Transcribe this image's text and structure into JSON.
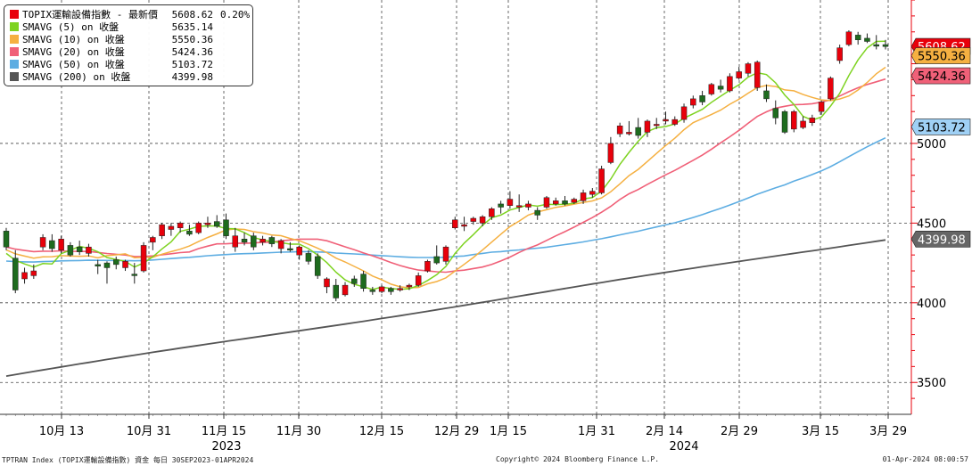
{
  "chart_data": {
    "type": "candlestick",
    "title": "TOPIX運輸設備指數 - 最新價",
    "ylim": [
      3300,
      5900
    ],
    "yticks": [
      "3500",
      "4000",
      "4500",
      "5000"
    ],
    "xticks": [
      "10月 13",
      "10月 31",
      "11月 15",
      "11月 30",
      "12月 15",
      "12月 29",
      "1月 15",
      "1月 31",
      "2月 14",
      "2月 29",
      "3月 15",
      "3月 29"
    ],
    "year_labels": [
      "2023",
      "2024"
    ],
    "legend": [
      {
        "name": "TOPIX運輸設備指數 - 最新價",
        "value": "5608.62",
        "change": "0.20%",
        "color": "#e8000b"
      },
      {
        "name": "SMAVG (5)  on 收盤",
        "value": "5635.14",
        "color": "#7ed321"
      },
      {
        "name": "SMAVG (10)  on 收盤",
        "value": "5550.36",
        "color": "#f5b041"
      },
      {
        "name": "SMAVG (20)  on 收盤",
        "value": "5424.36",
        "color": "#f06078"
      },
      {
        "name": "SMAVG (50)  on 收盤",
        "value": "5103.72",
        "color": "#5dade2"
      },
      {
        "name": "SMAVG (200)  on 收盤",
        "value": "4399.98",
        "color": "#555555"
      }
    ],
    "value_tags": [
      {
        "label": "5608.62",
        "value": 5608.62,
        "bg": "#e8000b",
        "fg": "#ffffff"
      },
      {
        "label": "5550.36",
        "value": 5550.36,
        "bg": "#f5b041",
        "fg": "#000000"
      },
      {
        "label": "5424.36",
        "value": 5424.36,
        "bg": "#f06078",
        "fg": "#000000"
      },
      {
        "label": "5103.72",
        "value": 5103.72,
        "bg": "#9fd0f5",
        "fg": "#000000"
      },
      {
        "label": "4399.98",
        "value": 4399.98,
        "bg": "#666666",
        "fg": "#ffffff"
      }
    ],
    "candles": [
      [
        4450,
        4470,
        4330,
        4350
      ],
      [
        4280,
        4330,
        4060,
        4080
      ],
      [
        4150,
        4220,
        4120,
        4190
      ],
      [
        4170,
        4240,
        4150,
        4200
      ],
      [
        4350,
        4430,
        4330,
        4410
      ],
      [
        4390,
        4430,
        4320,
        4340
      ],
      [
        4330,
        4420,
        4310,
        4400
      ],
      [
        4360,
        4380,
        4290,
        4300
      ],
      [
        4350,
        4390,
        4300,
        4320
      ],
      [
        4310,
        4370,
        4290,
        4350
      ],
      [
        4240,
        4270,
        4180,
        4230
      ],
      [
        4250,
        4260,
        4120,
        4220
      ],
      [
        4270,
        4290,
        4210,
        4240
      ],
      [
        4220,
        4270,
        4200,
        4260
      ],
      [
        4180,
        4250,
        4120,
        4170
      ],
      [
        4200,
        4380,
        4190,
        4360
      ],
      [
        4380,
        4420,
        4330,
        4410
      ],
      [
        4420,
        4500,
        4400,
        4490
      ],
      [
        4460,
        4500,
        4420,
        4480
      ],
      [
        4470,
        4510,
        4440,
        4500
      ],
      [
        4450,
        4490,
        4420,
        4430
      ],
      [
        4440,
        4510,
        4430,
        4500
      ],
      [
        4490,
        4540,
        4470,
        4500
      ],
      [
        4510,
        4550,
        4470,
        4480
      ],
      [
        4520,
        4560,
        4400,
        4420
      ],
      [
        4350,
        4470,
        4320,
        4420
      ],
      [
        4400,
        4440,
        4360,
        4380
      ],
      [
        4420,
        4440,
        4330,
        4350
      ],
      [
        4380,
        4420,
        4360,
        4400
      ],
      [
        4410,
        4420,
        4350,
        4370
      ],
      [
        4340,
        4400,
        4310,
        4390
      ],
      [
        4340,
        4380,
        4320,
        4330
      ],
      [
        4300,
        4360,
        4270,
        4350
      ],
      [
        4310,
        4330,
        4240,
        4260
      ],
      [
        4290,
        4310,
        4150,
        4170
      ],
      [
        4100,
        4160,
        4060,
        4150
      ],
      [
        4110,
        4150,
        4010,
        4030
      ],
      [
        4050,
        4130,
        4040,
        4110
      ],
      [
        4150,
        4170,
        4100,
        4120
      ],
      [
        4180,
        4200,
        4070,
        4090
      ],
      [
        4080,
        4100,
        4050,
        4070
      ],
      [
        4070,
        4110,
        4060,
        4100
      ],
      [
        4090,
        4100,
        4050,
        4070
      ],
      [
        4080,
        4110,
        4070,
        4090
      ],
      [
        4100,
        4120,
        4080,
        4110
      ],
      [
        4110,
        4190,
        4100,
        4170
      ],
      [
        4200,
        4270,
        4190,
        4260
      ],
      [
        4290,
        4360,
        4240,
        4250
      ],
      [
        4260,
        4360,
        4240,
        4350
      ],
      [
        4470,
        4540,
        4460,
        4520
      ],
      [
        4480,
        4540,
        4450,
        4490
      ],
      [
        4510,
        4540,
        4490,
        4530
      ],
      [
        4500,
        4550,
        4480,
        4540
      ],
      [
        4540,
        4600,
        4520,
        4590
      ],
      [
        4620,
        4640,
        4560,
        4600
      ],
      [
        4610,
        4700,
        4590,
        4650
      ],
      [
        4600,
        4680,
        4570,
        4610
      ],
      [
        4600,
        4640,
        4580,
        4620
      ],
      [
        4580,
        4600,
        4520,
        4550
      ],
      [
        4600,
        4670,
        4590,
        4660
      ],
      [
        4620,
        4660,
        4610,
        4640
      ],
      [
        4640,
        4670,
        4610,
        4620
      ],
      [
        4630,
        4660,
        4620,
        4650
      ],
      [
        4640,
        4710,
        4620,
        4690
      ],
      [
        4680,
        4720,
        4660,
        4700
      ],
      [
        4690,
        4860,
        4680,
        4840
      ],
      [
        4880,
        5040,
        4870,
        5000
      ],
      [
        5060,
        5130,
        5040,
        5110
      ],
      [
        5060,
        5140,
        5050,
        5070
      ],
      [
        5100,
        5160,
        5030,
        5050
      ],
      [
        5070,
        5150,
        5040,
        5140
      ],
      [
        5120,
        5160,
        5090,
        5120
      ],
      [
        5140,
        5200,
        5120,
        5150
      ],
      [
        5120,
        5170,
        5110,
        5150
      ],
      [
        5150,
        5250,
        5130,
        5230
      ],
      [
        5240,
        5300,
        5220,
        5280
      ],
      [
        5300,
        5330,
        5240,
        5260
      ],
      [
        5310,
        5380,
        5300,
        5370
      ],
      [
        5360,
        5400,
        5320,
        5340
      ],
      [
        5330,
        5440,
        5320,
        5420
      ],
      [
        5410,
        5480,
        5400,
        5450
      ],
      [
        5440,
        5510,
        5420,
        5500
      ],
      [
        5350,
        5520,
        5330,
        5510
      ],
      [
        5330,
        5370,
        5260,
        5280
      ],
      [
        5220,
        5270,
        5120,
        5160
      ],
      [
        5200,
        5210,
        5060,
        5070
      ],
      [
        5090,
        5210,
        5070,
        5200
      ],
      [
        5100,
        5170,
        5090,
        5140
      ],
      [
        5130,
        5180,
        5110,
        5160
      ],
      [
        5200,
        5270,
        5180,
        5260
      ],
      [
        5280,
        5420,
        5270,
        5410
      ],
      [
        5520,
        5620,
        5500,
        5600
      ],
      [
        5620,
        5710,
        5610,
        5700
      ],
      [
        5680,
        5700,
        5620,
        5650
      ],
      [
        5660,
        5690,
        5630,
        5640
      ],
      [
        5620,
        5680,
        5590,
        5610
      ],
      [
        5620,
        5650,
        5590,
        5608
      ]
    ]
  },
  "footer": {
    "left": "TPTRAN Index (TOPIX運輸設備指數) 資金  每日 30SEP2023-01APR2024",
    "center": "Copyright© 2024 Bloomberg Finance L.P.",
    "right": "01-Apr-2024 08:00:57"
  }
}
